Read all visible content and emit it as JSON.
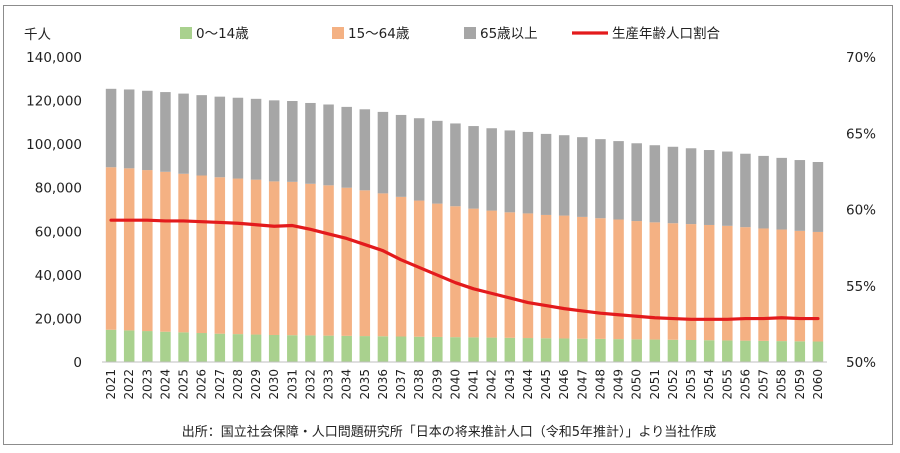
{
  "chart_data": {
    "type": "bar",
    "stacked": true,
    "y_unit": "千人",
    "ylim": [
      0,
      140000
    ],
    "y_ticks": [
      "0",
      "20,000",
      "40,000",
      "60,000",
      "80,000",
      "100,000",
      "120,000",
      "140,000"
    ],
    "y2lim": [
      50,
      70
    ],
    "y2_ticks": [
      "50%",
      "55%",
      "60%",
      "65%",
      "70%"
    ],
    "legend_position": "top",
    "categories": [
      "2021",
      "2022",
      "2023",
      "2024",
      "2025",
      "2026",
      "2027",
      "2028",
      "2029",
      "2030",
      "2031",
      "2032",
      "2033",
      "2034",
      "2035",
      "2036",
      "2037",
      "2038",
      "2039",
      "2040",
      "2041",
      "2042",
      "2043",
      "2044",
      "2045",
      "2046",
      "2047",
      "2048",
      "2049",
      "2050",
      "2051",
      "2052",
      "2053",
      "2054",
      "2055",
      "2056",
      "2057",
      "2058",
      "2059",
      "2060"
    ],
    "series": [
      {
        "name": "0～14歳",
        "color": "#a9d18e",
        "values": [
          14800,
          14500,
          14200,
          13900,
          13600,
          13300,
          13000,
          12800,
          12600,
          12400,
          12300,
          12200,
          12100,
          12000,
          11900,
          11800,
          11700,
          11600,
          11500,
          11400,
          11300,
          11200,
          11100,
          11000,
          10900,
          10800,
          10700,
          10600,
          10500,
          10400,
          10300,
          10200,
          10100,
          10000,
          9900,
          9800,
          9700,
          9600,
          9500,
          9400
        ]
      },
      {
        "name": "15～64歳",
        "color": "#f4b183",
        "values": [
          74600,
          74400,
          73900,
          73400,
          72800,
          72300,
          71800,
          71400,
          71100,
          70500,
          70400,
          69600,
          69000,
          68000,
          66900,
          65600,
          64100,
          62500,
          61200,
          60100,
          59100,
          58300,
          57600,
          57200,
          56600,
          56400,
          55900,
          55400,
          54900,
          54300,
          53800,
          53500,
          53200,
          52900,
          52600,
          52100,
          51600,
          51200,
          50700,
          50300
        ]
      },
      {
        "name": "65歳以上",
        "color": "#a6a6a6",
        "values": [
          36000,
          36200,
          36400,
          36600,
          36800,
          36900,
          37000,
          37100,
          37100,
          37200,
          37100,
          37100,
          37100,
          37100,
          37200,
          37400,
          37600,
          37800,
          38000,
          38000,
          37900,
          37800,
          37600,
          37400,
          37200,
          36900,
          36600,
          36300,
          36000,
          35700,
          35400,
          35100,
          34800,
          34400,
          34100,
          33700,
          33300,
          32900,
          32500,
          32100
        ]
      },
      {
        "name": "生産年齢人口割合",
        "color": "#e31a1c",
        "axis": "right",
        "values": [
          59.3,
          59.3,
          59.3,
          59.25,
          59.25,
          59.2,
          59.15,
          59.1,
          59.0,
          58.9,
          58.95,
          58.7,
          58.4,
          58.1,
          57.7,
          57.3,
          56.7,
          56.2,
          55.7,
          55.2,
          54.8,
          54.5,
          54.2,
          53.9,
          53.7,
          53.5,
          53.35,
          53.2,
          53.1,
          53.0,
          52.9,
          52.85,
          52.8,
          52.8,
          52.8,
          52.85,
          52.85,
          52.9,
          52.85,
          52.85
        ]
      }
    ],
    "source": "出所：国立社会保障・人口問題研究所「日本の将来推計人口（令和5年推計）」より当社作成"
  }
}
